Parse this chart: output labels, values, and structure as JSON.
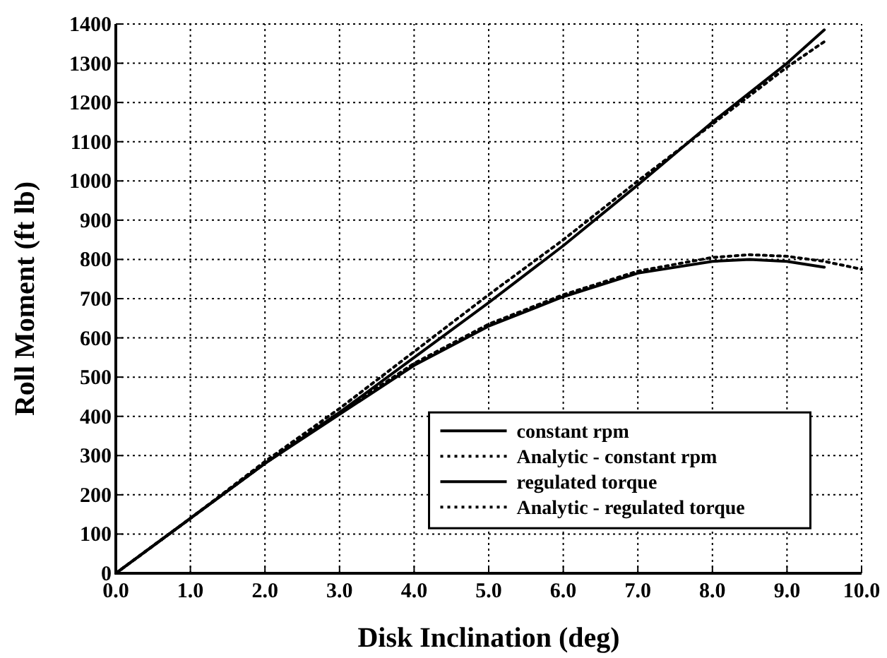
{
  "chart_data": {
    "type": "line",
    "xlabel": "Disk Inclination (deg)",
    "ylabel": "Roll Moment (ft lb)",
    "xlim": [
      0,
      10
    ],
    "ylim": [
      0,
      1400
    ],
    "xticks": [
      {
        "value": 0,
        "label": "0.0"
      },
      {
        "value": 1,
        "label": "1.0"
      },
      {
        "value": 2,
        "label": "2.0"
      },
      {
        "value": 3,
        "label": "3.0"
      },
      {
        "value": 4,
        "label": "4.0"
      },
      {
        "value": 5,
        "label": "5.0"
      },
      {
        "value": 6,
        "label": "6.0"
      },
      {
        "value": 7,
        "label": "7.0"
      },
      {
        "value": 8,
        "label": "8.0"
      },
      {
        "value": 9,
        "label": "9.0"
      },
      {
        "value": 10,
        "label": "10.0"
      }
    ],
    "yticks": [
      0,
      100,
      200,
      300,
      400,
      500,
      600,
      700,
      800,
      900,
      1000,
      1100,
      1200,
      1300,
      1400
    ],
    "grid": true,
    "legend": "bottom right",
    "marker": "none",
    "series": [
      {
        "name": "constant rpm",
        "color": "#000000",
        "line_style": "solid",
        "x": [
          0,
          1,
          2,
          3,
          4,
          5,
          6,
          7,
          8,
          9,
          9.5
        ],
        "values": [
          0,
          140,
          280,
          410,
          550,
          690,
          835,
          990,
          1150,
          1300,
          1385
        ]
      },
      {
        "name": "Analytic - constant rpm",
        "color": "#000000",
        "line_style": "dotted",
        "x": [
          0,
          1,
          2,
          3,
          4,
          5,
          6,
          7,
          8,
          9,
          9.5
        ],
        "values": [
          0,
          140,
          285,
          420,
          565,
          710,
          850,
          1000,
          1145,
          1290,
          1355
        ]
      },
      {
        "name": "regulated torque",
        "color": "#000000",
        "line_style": "solid",
        "x": [
          0,
          1,
          2,
          3,
          4,
          5,
          6,
          7,
          8,
          8.5,
          9,
          9.5
        ],
        "values": [
          0,
          140,
          280,
          405,
          530,
          630,
          705,
          765,
          795,
          800,
          795,
          780
        ]
      },
      {
        "name": "Analytic - regulated torque",
        "color": "#000000",
        "line_style": "dotted",
        "x": [
          0,
          1,
          2,
          3,
          4,
          5,
          6,
          7,
          8,
          8.5,
          9,
          9.5,
          10
        ],
        "values": [
          0,
          140,
          280,
          410,
          535,
          635,
          710,
          770,
          805,
          812,
          808,
          795,
          775
        ]
      }
    ]
  }
}
